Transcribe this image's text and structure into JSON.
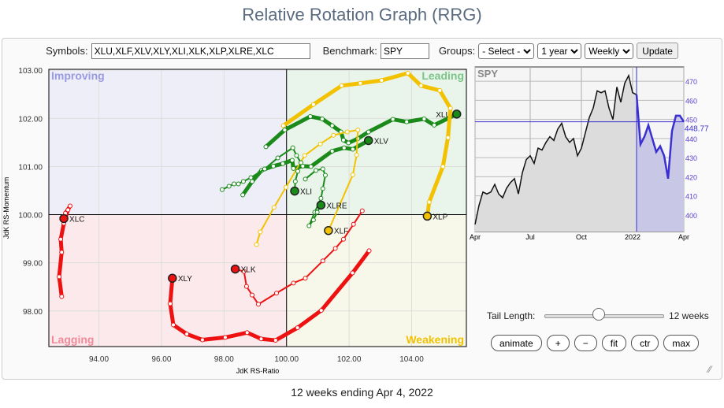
{
  "title": "Relative Rotation Graph (RRG)",
  "form": {
    "symbols_label": "Symbols:",
    "symbols_value": "XLU,XLF,XLV,XLY,XLI,XLK,XLP,XLRE,XLC",
    "benchmark_label": "Benchmark:",
    "benchmark_value": "SPY",
    "groups_label": "Groups:",
    "groups_value": "- Select -",
    "period_value": "1 year",
    "frequency_value": "Weekly",
    "update_label": "Update"
  },
  "chart_data": [
    {
      "type": "scatter",
      "xlabel": "JdK RS-Ratio",
      "ylabel": "JdK RS-Momentum",
      "xlim": [
        92.4,
        105.75
      ],
      "ylim": [
        97.26,
        103.02
      ],
      "grid": true,
      "xticks": [
        "94.00",
        "96.00",
        "98.00",
        "100.00",
        "102.00",
        "104.00"
      ],
      "yticks": [
        "98.00",
        "99.00",
        "100.00",
        "101.00",
        "102.00",
        "103.00"
      ],
      "quadrants": {
        "improving": "Improving",
        "leading": "Leading",
        "weakening": "Weakening",
        "lagging": "Lagging"
      },
      "quadrant_colors": {
        "improving": "#eeeef8",
        "leading": "#e9f4ea",
        "weakening": "#f8f8ea",
        "lagging": "#fbe9ec"
      },
      "series": [
        {
          "name": "XLU",
          "color": "#1a8a1a",
          "thick": true,
          "x": [
            99.34,
            99.94,
            100.76,
            101.14,
            101.46,
            101.74,
            101.82,
            101.98,
            102.28,
            102.62,
            103.4,
            103.84,
            104.4,
            104.72,
            105.44
          ],
          "y": [
            101.41,
            101.76,
            102.04,
            101.99,
            101.85,
            101.72,
            101.55,
            101.49,
            101.58,
            101.72,
            101.98,
            101.93,
            101.99,
            101.86,
            102.09
          ]
        },
        {
          "name": "XLV",
          "color": "#1a8a1a",
          "thick": true,
          "x": [
            98.6,
            98.9,
            99.2,
            99.58,
            99.88,
            100.18,
            100.22,
            100.52,
            100.78,
            101.46,
            101.84,
            102.12,
            102.62
          ],
          "y": [
            100.41,
            100.69,
            100.92,
            101.01,
            101.06,
            101.13,
            100.96,
            101.01,
            101.0,
            101.32,
            101.39,
            101.36,
            101.54
          ]
        },
        {
          "name": "XLP",
          "color": "#f2c200",
          "thick": true,
          "x": [
            99.9,
            100.86,
            101.76,
            102.36,
            103.04,
            103.88,
            104.3,
            104.9,
            105.24,
            105.16,
            105.0,
            104.56,
            104.5
          ],
          "y": [
            101.85,
            102.29,
            102.68,
            102.73,
            102.79,
            102.94,
            102.68,
            102.58,
            102.21,
            101.6,
            101.0,
            100.26,
            99.97
          ]
        },
        {
          "name": "XLF",
          "color": "#f2c200",
          "thick": false,
          "x": [
            99.04,
            99.16,
            99.6,
            99.98,
            100.58,
            101.08,
            101.5,
            101.94,
            102.28,
            102.24,
            102.12,
            101.34
          ],
          "y": [
            99.38,
            99.64,
            100.15,
            100.57,
            101.23,
            101.47,
            101.65,
            101.72,
            101.76,
            101.24,
            100.83,
            99.67
          ]
        },
        {
          "name": "XLI",
          "color": "#1a8a1a",
          "thick": false,
          "x": [
            97.94,
            98.16,
            98.32,
            98.46,
            98.62,
            98.86,
            99.3,
            99.72,
            100.2,
            100.32,
            100.46,
            100.36,
            100.28,
            100.26
          ],
          "y": [
            100.52,
            100.59,
            100.64,
            100.64,
            100.69,
            100.77,
            100.95,
            101.18,
            101.39,
            101.23,
            101.08,
            100.9,
            100.69,
            100.49
          ]
        },
        {
          "name": "XLRE",
          "color": "#1a8a1a",
          "thick": false,
          "x": [
            100.6,
            100.94,
            101.16,
            101.24,
            101.16,
            101.1,
            100.9,
            100.72,
            100.86,
            100.98,
            101.1
          ],
          "y": [
            100.74,
            100.92,
            100.95,
            100.82,
            100.54,
            100.34,
            100.05,
            99.77,
            99.89,
            100.05,
            100.2
          ]
        },
        {
          "name": "XLK",
          "color": "#ee1111",
          "thick": false,
          "x": [
            102.42,
            102.14,
            101.82,
            101.56,
            101.16,
            100.6,
            100.22,
            99.68,
            99.1,
            98.9,
            98.72,
            98.64,
            98.36
          ],
          "y": [
            100.08,
            99.8,
            99.49,
            99.3,
            99.04,
            98.68,
            98.58,
            98.37,
            98.14,
            98.33,
            98.51,
            98.82,
            98.87
          ]
        },
        {
          "name": "XLY",
          "color": "#ee1111",
          "thick": true,
          "x": [
            102.64,
            102.11,
            101.11,
            100.35,
            99.65,
            99.19,
            98.74,
            98.04,
            97.31,
            96.81,
            96.38,
            96.28,
            96.35
          ],
          "y": [
            99.25,
            98.79,
            98.01,
            97.65,
            97.39,
            97.42,
            97.55,
            97.45,
            97.4,
            97.52,
            97.71,
            98.15,
            98.68
          ]
        },
        {
          "name": "XLC",
          "color": "#ee1111",
          "thick": true,
          "x": [
            92.81,
            92.73,
            92.81,
            92.78,
            92.88,
            93.01,
            93.08,
            92.93,
            92.88
          ],
          "y": [
            98.3,
            98.71,
            99.22,
            99.49,
            99.82,
            100.1,
            100.18,
            100.03,
            99.92
          ]
        }
      ]
    },
    {
      "type": "area",
      "title": "SPY",
      "xticks": [
        "Apr",
        "Jul",
        "Oct",
        "2022",
        "Apr"
      ],
      "yticks": [
        "400",
        "410",
        "420",
        "430",
        "440",
        "450",
        "460",
        "470"
      ],
      "ylim": [
        391.3,
        477.5
      ],
      "last_value": "448.77",
      "highlight_color": "#3a2fd0",
      "highlight_weeks": 12,
      "values": [
        395,
        405,
        412,
        411,
        412,
        416,
        411,
        409,
        414,
        417,
        419,
        411,
        422,
        429,
        431,
        427,
        435,
        434,
        438,
        441,
        439,
        445,
        448,
        441,
        438,
        440,
        431,
        435,
        443,
        451,
        456,
        465,
        464,
        465,
        456,
        450,
        467,
        459,
        469,
        473,
        464,
        463,
        437,
        441,
        447,
        440,
        433,
        436,
        431,
        419,
        444,
        452,
        452,
        448.77
      ]
    }
  ],
  "controls": {
    "tail_label": "Tail Length:",
    "tail_value": "12 weeks",
    "tail_fraction": 0.45,
    "buttons": [
      "animate",
      "+",
      "−",
      "fit",
      "ctr",
      "max"
    ]
  },
  "footer": "12 weeks ending Apr 4, 2022"
}
